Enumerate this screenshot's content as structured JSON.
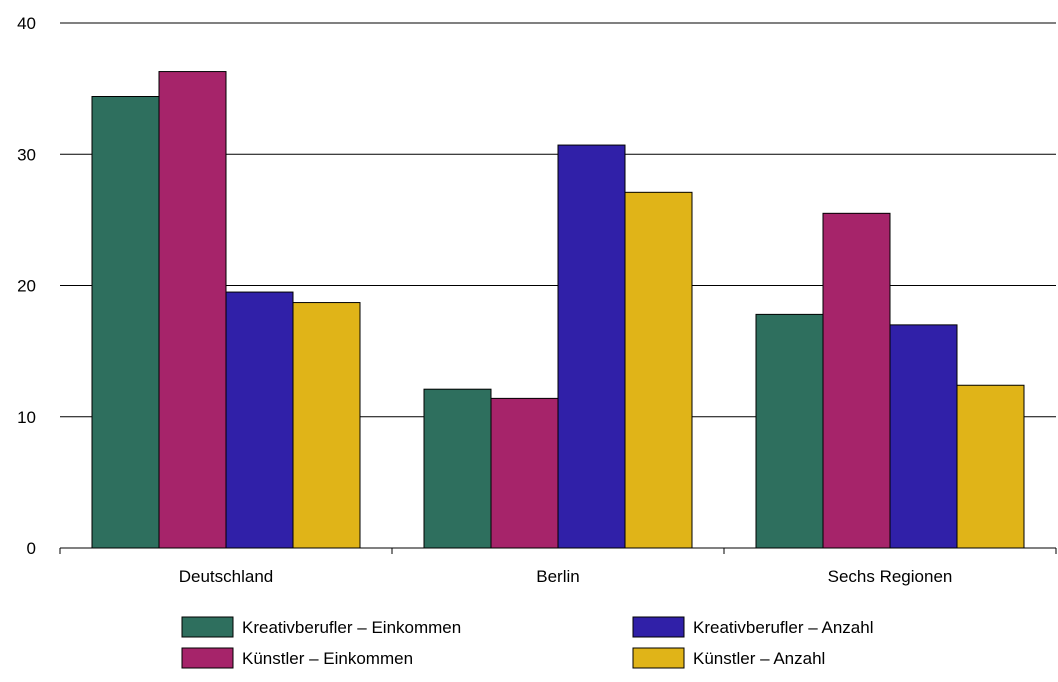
{
  "chart_data": {
    "type": "bar",
    "categories": [
      "Deutschland",
      "Berlin",
      "Sechs Regionen"
    ],
    "series": [
      {
        "name": "Kreativberufler – Einkommen",
        "color": "#2e6f5e",
        "values": [
          34.4,
          12.1,
          17.8
        ]
      },
      {
        "name": "Künstler – Einkommen",
        "color": "#a6246a",
        "values": [
          36.3,
          11.4,
          25.5
        ]
      },
      {
        "name": "Kreativberufler – Anzahl",
        "color": "#3020a8",
        "values": [
          19.5,
          30.7,
          17.0
        ]
      },
      {
        "name": "Künstler – Anzahl",
        "color": "#e0b418",
        "values": [
          18.7,
          27.1,
          12.4
        ]
      }
    ],
    "ylim": [
      0,
      40
    ],
    "yticks": [
      "0",
      "10",
      "20",
      "30",
      "40"
    ],
    "grid": true,
    "legend_position": "bottom"
  }
}
